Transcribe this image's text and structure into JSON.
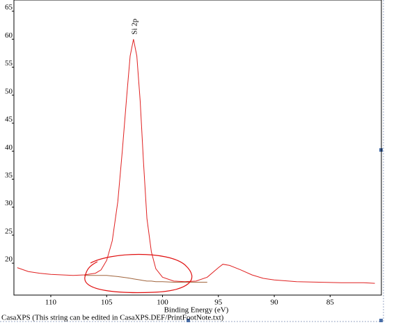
{
  "chart_data": {
    "type": "line",
    "annotation": "Si 2p",
    "x_label": "Binding Energy (eV)",
    "footer": "CasaXPS (This string can be edited in CasaXPS.DEF/PrintFootNote.txt)",
    "x": [
      113,
      112,
      111,
      110,
      109,
      108,
      107,
      106,
      105.5,
      105,
      104.5,
      104,
      103.6,
      103.2,
      102.9,
      102.6,
      102.3,
      102,
      101.7,
      101.4,
      101,
      100.6,
      100,
      99,
      98,
      97,
      96,
      95,
      94.6,
      94,
      93,
      92,
      91,
      90,
      88,
      86,
      84,
      82,
      81
    ],
    "series": [
      {
        "color": "#e02020",
        "values": [
          19.2,
          18.5,
          18.2,
          18,
          17.9,
          17.8,
          17.9,
          18.2,
          18.8,
          20.5,
          24,
          31,
          40,
          50,
          57,
          60,
          57,
          49,
          38,
          28,
          22,
          19,
          17.5,
          16.8,
          16.7,
          16.8,
          17.5,
          19.2,
          19.8,
          19.6,
          18.8,
          17.9,
          17.3,
          17,
          16.7,
          16.6,
          16.5,
          16.5,
          16.4
        ]
      },
      {
        "color": "#a0643c",
        "values": [
          null,
          null,
          null,
          null,
          null,
          null,
          17.8,
          17.8,
          17.8,
          17.8,
          17.7,
          17.6,
          17.5,
          17.4,
          17.3,
          17.2,
          17.1,
          17.0,
          16.9,
          16.8,
          16.8,
          16.7,
          16.7,
          16.6,
          16.6,
          16.6,
          16.6,
          null,
          null,
          null,
          null,
          null,
          null,
          null,
          null,
          null,
          null,
          null,
          null
        ]
      }
    ],
    "xlim": [
      113.3,
      80.6
    ],
    "ylim": [
      14.3,
      67
    ],
    "xticks": [
      110,
      105,
      100,
      95,
      90,
      85
    ],
    "yticks": [
      20,
      25,
      30,
      35,
      40,
      45,
      50,
      55,
      60,
      65
    ]
  }
}
